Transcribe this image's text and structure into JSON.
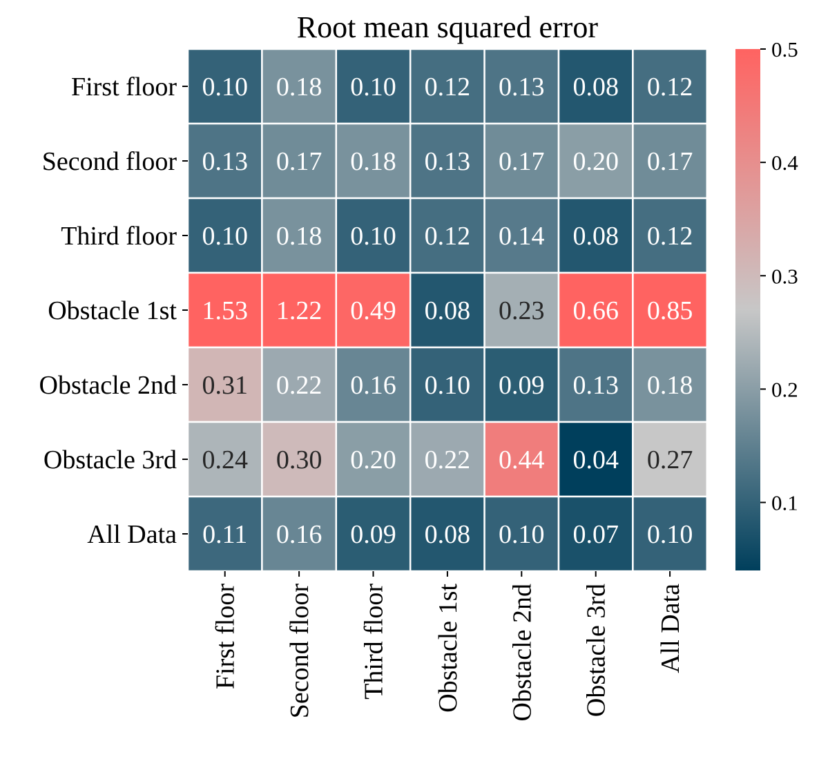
{
  "chart_data": {
    "type": "heatmap",
    "title": "Root mean squared error",
    "xlabel": "",
    "ylabel": "",
    "x_categories": [
      "First floor",
      "Second floor",
      "Third floor",
      "Obstacle 1st",
      "Obstacle 2nd",
      "Obstacle 3rd",
      "All Data"
    ],
    "y_categories": [
      "First floor",
      "Second floor",
      "Third floor",
      "Obstacle 1st",
      "Obstacle 2nd",
      "Obstacle 3rd",
      "All Data"
    ],
    "values": [
      [
        0.1,
        0.18,
        0.1,
        0.12,
        0.13,
        0.08,
        0.12
      ],
      [
        0.13,
        0.17,
        0.18,
        0.13,
        0.17,
        0.2,
        0.17
      ],
      [
        0.1,
        0.18,
        0.1,
        0.12,
        0.14,
        0.08,
        0.12
      ],
      [
        1.53,
        1.22,
        0.49,
        0.08,
        0.23,
        0.66,
        0.85
      ],
      [
        0.31,
        0.22,
        0.16,
        0.1,
        0.09,
        0.13,
        0.18
      ],
      [
        0.24,
        0.3,
        0.2,
        0.22,
        0.44,
        0.04,
        0.27
      ],
      [
        0.11,
        0.16,
        0.09,
        0.08,
        0.1,
        0.07,
        0.1
      ]
    ],
    "value_format": "0.00",
    "colorbar": {
      "range": [
        0.04,
        0.5
      ],
      "ticks": [
        0.1,
        0.2,
        0.3,
        0.4,
        0.5
      ],
      "tick_labels": [
        "0.1",
        "0.2",
        "0.3",
        "0.4",
        "0.5"
      ],
      "colormap": [
        "#003f5c",
        "#c7c7c7",
        "#ff6361"
      ],
      "mid_value": 0.27,
      "placement": "right"
    },
    "grid_lines": "white"
  }
}
